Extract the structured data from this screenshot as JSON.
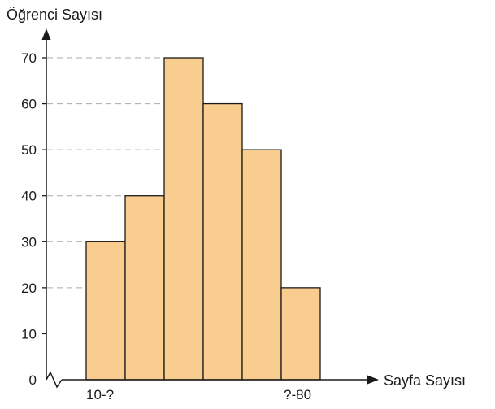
{
  "chart_data": {
    "type": "bar",
    "variant": "histogram",
    "bins": 6,
    "values": [
      30,
      40,
      70,
      60,
      50,
      20
    ],
    "bar_color": "#f9cd8f",
    "edge_color": "#1a1a1a",
    "ylabel": "Öğrenci Sayısı",
    "xlabel": "Sayfa Sayısı",
    "ylim": [
      0,
      70
    ],
    "y_ticks": [
      0,
      10,
      20,
      30,
      40,
      50,
      60,
      70
    ],
    "y_tick_labels": [
      "0",
      "10",
      "20",
      "30",
      "40",
      "50",
      "60",
      "70"
    ],
    "x_edge_labels": [
      "10-?",
      "?-80"
    ],
    "axis_break": true,
    "dashed_guides_to_bar_tops": true
  }
}
